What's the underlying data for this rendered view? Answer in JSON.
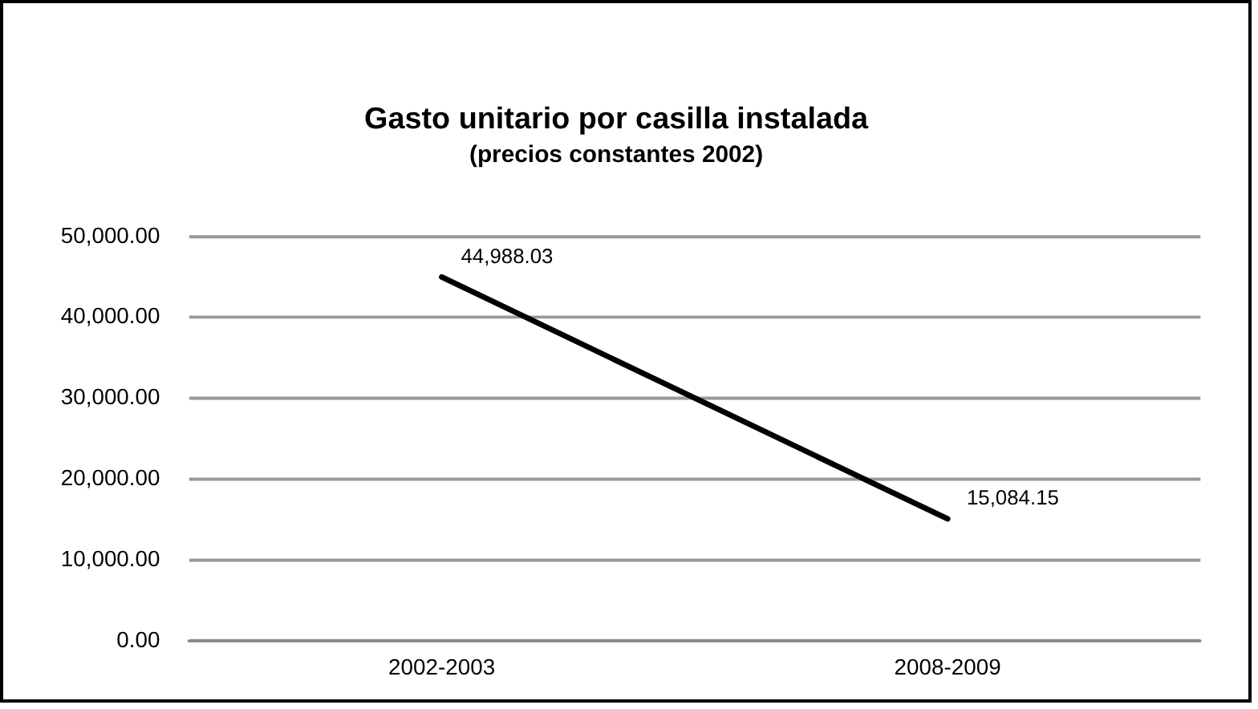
{
  "chart_data": {
    "type": "line",
    "title": "Gasto unitario por casilla instalada",
    "subtitle": "(precios constantes 2002)",
    "categories": [
      "2002-2003",
      "2008-2009"
    ],
    "series": [
      {
        "color": "#000000",
        "values": [
          44988.03,
          15084.15
        ]
      }
    ],
    "value_labels": [
      "44,988.03",
      "15,084.15"
    ],
    "ylim": [
      0,
      50000
    ],
    "yticks": [
      {
        "value": 0,
        "label": "0.00"
      },
      {
        "value": 10000,
        "label": "10,000.00"
      },
      {
        "value": 20000,
        "label": "20,000.00"
      },
      {
        "value": 30000,
        "label": "30,000.00"
      },
      {
        "value": 40000,
        "label": "40,000.00"
      },
      {
        "value": 50000,
        "label": "50,000.00"
      }
    ],
    "grid": "y",
    "legend": false,
    "marker": "none",
    "line_style": "solid"
  }
}
